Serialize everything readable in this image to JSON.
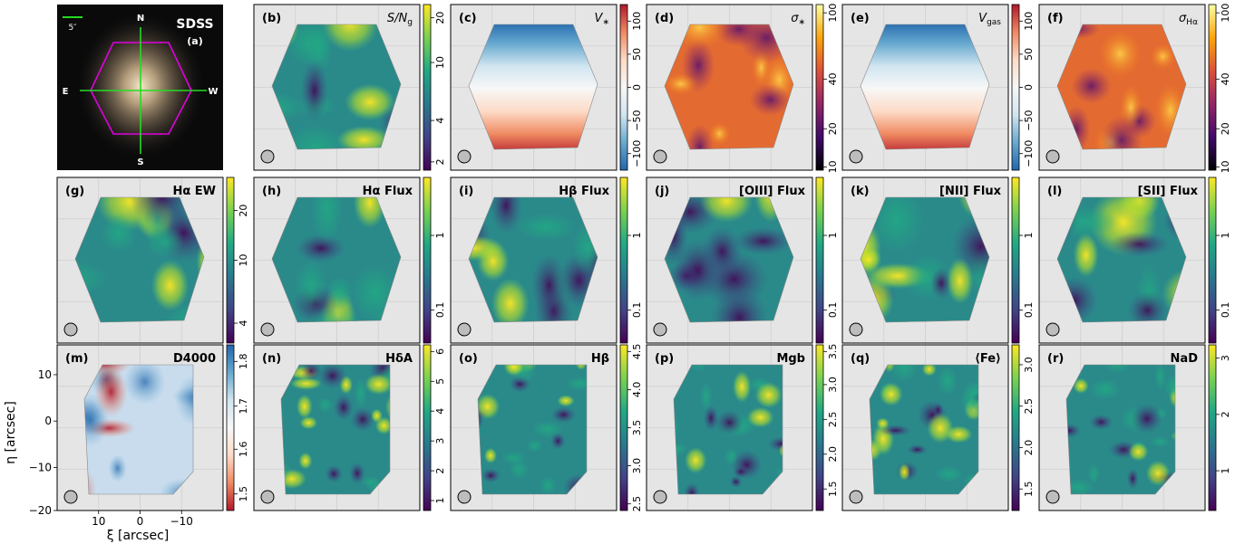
{
  "figure": {
    "x_axis_label": "ξ [arcsec]",
    "y_axis_label": "η [arcsec]",
    "sdss_label": "SDSS",
    "scale_bar_label": "5″",
    "compass": {
      "north": "N",
      "south": "S",
      "east": "E",
      "west": "W"
    }
  },
  "colors": {
    "map_background": "#e5e5e5",
    "viridis": [
      "#440154",
      "#414487",
      "#2a788e",
      "#22a884",
      "#7ad151",
      "#fde725"
    ],
    "rdbu": [
      "#2166ac",
      "#67a9cf",
      "#d1e5f0",
      "#f7f7f7",
      "#fddbc7",
      "#ef8a62",
      "#b2182b"
    ],
    "inferno": [
      "#000004",
      "#420a68",
      "#932667",
      "#dd513a",
      "#fca50a",
      "#fcffa4"
    ],
    "ifu_outline": "#e000e0",
    "cross": "#22dd22"
  },
  "chart_data": {
    "type": "heatmap",
    "x_ticks": [
      "10",
      "0",
      "−10"
    ],
    "y_ticks": [
      "10",
      "0",
      "−10",
      "−20"
    ],
    "panels": [
      {
        "label": "(a)",
        "title": "SDSS",
        "kind": "image"
      },
      {
        "label": "(b)",
        "title": "S/N",
        "title_sub": "g",
        "cmap": "viridis",
        "ticks": [
          "20",
          "10",
          "4",
          "2"
        ],
        "tick_pos": [
          0.08,
          0.35,
          0.7,
          0.95
        ]
      },
      {
        "label": "(c)",
        "title": "V",
        "title_sub": "∗",
        "cmap": "rdbu",
        "ticks": [
          "100",
          "50",
          "0",
          "−50",
          "−100"
        ],
        "tick_pos": [
          0.1,
          0.3,
          0.5,
          0.7,
          0.9
        ]
      },
      {
        "label": "(d)",
        "title": "σ",
        "title_sub": "∗",
        "cmap": "inferno",
        "ticks": [
          "100",
          "40",
          "20",
          "10"
        ],
        "tick_pos": [
          0.05,
          0.45,
          0.75,
          0.98
        ]
      },
      {
        "label": "(e)",
        "title": "V",
        "title_sub": "gas",
        "cmap": "rdbu",
        "ticks": [
          "100",
          "50",
          "0",
          "−50",
          "−100"
        ],
        "tick_pos": [
          0.1,
          0.3,
          0.5,
          0.7,
          0.9
        ]
      },
      {
        "label": "(f)",
        "title": "σ",
        "title_sub": "Hα",
        "cmap": "inferno",
        "ticks": [
          "100",
          "40",
          "20",
          "10"
        ],
        "tick_pos": [
          0.05,
          0.45,
          0.75,
          0.98
        ]
      },
      {
        "label": "(g)",
        "title": "Hα EW",
        "cmap": "viridis",
        "ticks": [
          "20",
          "10",
          "4"
        ],
        "tick_pos": [
          0.2,
          0.5,
          0.88
        ]
      },
      {
        "label": "(h)",
        "title": "Hα Flux",
        "cmap": "viridis",
        "ticks": [
          "1",
          "0.1"
        ],
        "tick_pos": [
          0.35,
          0.8
        ]
      },
      {
        "label": "(i)",
        "title": "Hβ Flux",
        "cmap": "viridis",
        "ticks": [
          "1",
          "0.1"
        ],
        "tick_pos": [
          0.35,
          0.8
        ]
      },
      {
        "label": "(j)",
        "title": "[OIII] Flux",
        "cmap": "viridis",
        "ticks": [
          "1",
          "0.1"
        ],
        "tick_pos": [
          0.35,
          0.8
        ]
      },
      {
        "label": "(k)",
        "title": "[NII] Flux",
        "cmap": "viridis",
        "ticks": [
          "1",
          "0.1"
        ],
        "tick_pos": [
          0.35,
          0.8
        ]
      },
      {
        "label": "(l)",
        "title": "[SII] Flux",
        "cmap": "viridis",
        "ticks": [
          "1",
          "0.1"
        ],
        "tick_pos": [
          0.35,
          0.8
        ]
      },
      {
        "label": "(m)",
        "title": "D4000",
        "cmap": "rdbu_r",
        "ticks": [
          "1.8",
          "1.7",
          "1.6",
          "1.5"
        ],
        "tick_pos": [
          0.1,
          0.37,
          0.63,
          0.9
        ]
      },
      {
        "label": "(n)",
        "title": "HδA",
        "cmap": "viridis",
        "ticks": [
          "6",
          "5",
          "4",
          "3",
          "2",
          "1"
        ],
        "tick_pos": [
          0.04,
          0.22,
          0.4,
          0.58,
          0.76,
          0.94
        ]
      },
      {
        "label": "(o)",
        "title": "Hβ",
        "cmap": "viridis",
        "ticks": [
          "4.5",
          "4.0",
          "3.5",
          "3.0",
          "2.5"
        ],
        "tick_pos": [
          0.04,
          0.27,
          0.5,
          0.73,
          0.96
        ]
      },
      {
        "label": "(p)",
        "title": "Mgb",
        "cmap": "viridis",
        "ticks": [
          "3.5",
          "3.0",
          "2.5",
          "2.0",
          "1.5"
        ],
        "tick_pos": [
          0.04,
          0.24,
          0.45,
          0.66,
          0.87
        ]
      },
      {
        "label": "(q)",
        "title": "⟨Fe⟩",
        "cmap": "viridis",
        "ticks": [
          "3.0",
          "2.5",
          "2.0",
          "1.5"
        ],
        "tick_pos": [
          0.12,
          0.37,
          0.62,
          0.87
        ]
      },
      {
        "label": "(r)",
        "title": "NaD",
        "cmap": "viridis",
        "ticks": [
          "3",
          "2",
          "1"
        ],
        "tick_pos": [
          0.08,
          0.42,
          0.76
        ]
      }
    ]
  }
}
